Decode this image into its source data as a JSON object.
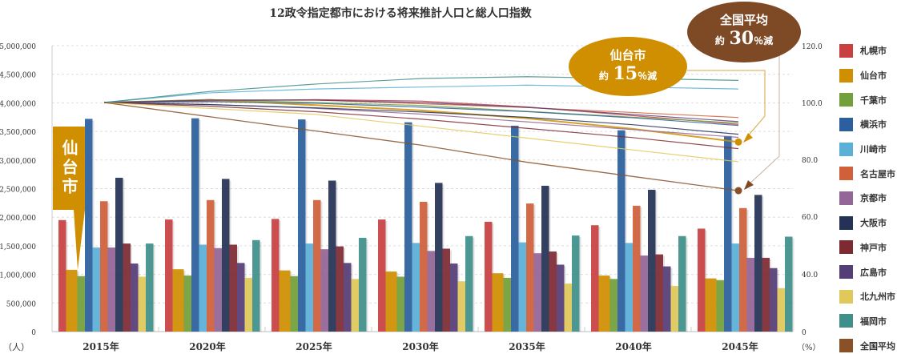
{
  "title": "12政令指定都市における将来推計人口と総人口指数",
  "left_unit": "（人）",
  "right_unit": "（%）",
  "callouts": {
    "sendai_tag": "仙台市",
    "sendai_bubble": {
      "name": "仙台市",
      "prefix": "約",
      "value": "15",
      "suffix": "％減"
    },
    "national_bubble": {
      "name": "全国平均",
      "prefix": "約",
      "value": "30",
      "suffix": "％減"
    }
  },
  "chart_data": {
    "type": "bar+line",
    "title": "12政令指定都市における将来推計人口と総人口指数",
    "categories": [
      "2015年",
      "2020年",
      "2025年",
      "2030年",
      "2035年",
      "2040年",
      "2045年"
    ],
    "left_axis": {
      "label": "（人）",
      "ylim": [
        0,
        5000000
      ],
      "ticks": [
        "0",
        "500,000",
        "1,000,000",
        "1,500,000",
        "2,000,000",
        "2,500,000",
        "3,000,000",
        "3,500,000",
        "4,000,000",
        "4,500,000",
        "5,000,000"
      ]
    },
    "right_axis": {
      "label": "（%）",
      "ticks": [
        "0",
        "40.0",
        "60.0",
        "80.0",
        "100.0",
        "120.0"
      ]
    },
    "series": [
      {
        "name": "札幌市",
        "color": "#c94040",
        "values": [
          1950000,
          1960000,
          1970000,
          1960000,
          1920000,
          1860000,
          1800000
        ]
      },
      {
        "name": "仙台市",
        "color": "#d08f00",
        "values": [
          1080000,
          1090000,
          1070000,
          1050000,
          1020000,
          980000,
          930000
        ]
      },
      {
        "name": "千葉市",
        "color": "#72a03a",
        "values": [
          970000,
          980000,
          970000,
          960000,
          940000,
          920000,
          900000
        ]
      },
      {
        "name": "横浜市",
        "color": "#2b5f9e",
        "values": [
          3720000,
          3730000,
          3710000,
          3660000,
          3600000,
          3520000,
          3420000
        ]
      },
      {
        "name": "川崎市",
        "color": "#5bb0d8",
        "values": [
          1470000,
          1520000,
          1540000,
          1550000,
          1560000,
          1550000,
          1540000
        ]
      },
      {
        "name": "名古屋市",
        "color": "#d0603a",
        "values": [
          2280000,
          2300000,
          2300000,
          2270000,
          2240000,
          2200000,
          2160000
        ]
      },
      {
        "name": "京都市",
        "color": "#946597",
        "values": [
          1470000,
          1460000,
          1440000,
          1410000,
          1370000,
          1330000,
          1290000
        ]
      },
      {
        "name": "大阪市",
        "color": "#243255",
        "values": [
          2690000,
          2670000,
          2640000,
          2600000,
          2550000,
          2480000,
          2390000
        ]
      },
      {
        "name": "神戸市",
        "color": "#7e2a32",
        "values": [
          1540000,
          1520000,
          1490000,
          1450000,
          1400000,
          1350000,
          1290000
        ]
      },
      {
        "name": "広島市",
        "color": "#553d77",
        "values": [
          1190000,
          1200000,
          1200000,
          1190000,
          1170000,
          1140000,
          1110000
        ]
      },
      {
        "name": "北九州市",
        "color": "#e0c95a",
        "values": [
          960000,
          940000,
          920000,
          880000,
          840000,
          800000,
          760000
        ]
      },
      {
        "name": "福岡市",
        "color": "#3f908a",
        "values": [
          1540000,
          1600000,
          1640000,
          1670000,
          1680000,
          1670000,
          1660000
        ]
      }
    ],
    "national_index": {
      "name": "全国平均",
      "color": "#8a5028",
      "values": [
        100,
        95,
        90,
        85,
        79,
        74,
        69
      ]
    },
    "index_note": "city index lines = population relative to 2015 (=100)"
  }
}
